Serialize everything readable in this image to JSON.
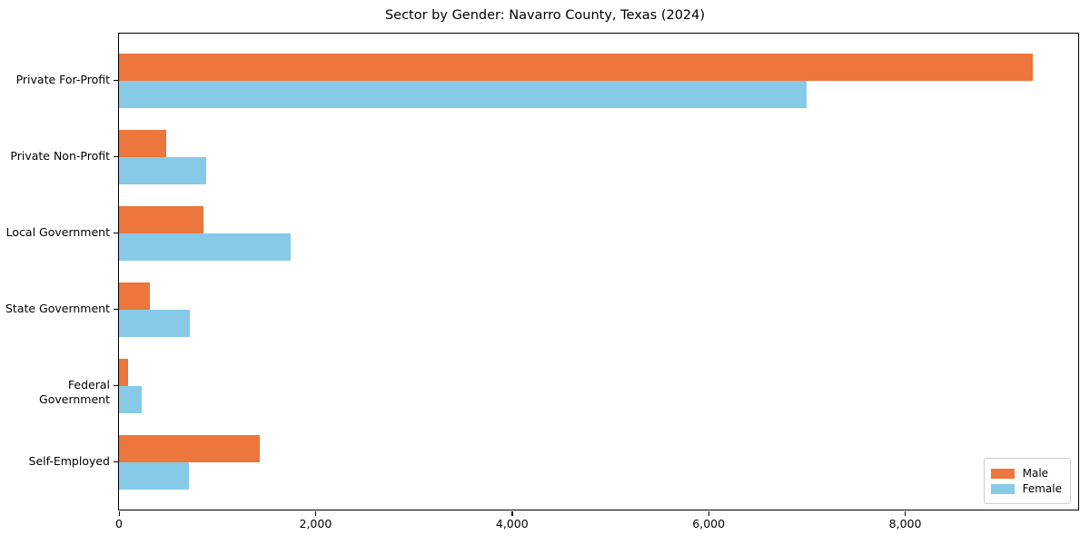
{
  "title": "Sector by Gender: Navarro County, Texas (2024)",
  "legend": {
    "position": "lower right",
    "items": [
      {
        "label": "Male",
        "color": "#ec763c"
      },
      {
        "label": "Female",
        "color": "#87cae8"
      }
    ]
  },
  "chart_data": {
    "type": "bar",
    "orientation": "horizontal",
    "title": "Sector by Gender: Navarro County, Texas (2024)",
    "xlabel": "",
    "ylabel": "",
    "grid": false,
    "legend_position": "lower right",
    "categories": [
      "Private For-Profit",
      "Private Non-Profit",
      "Local Government",
      "State Government",
      "Federal Government",
      "Self-Employed"
    ],
    "series": [
      {
        "name": "Male",
        "color": "#ec763c",
        "values": [
          9300,
          480,
          860,
          310,
          95,
          1430
        ]
      },
      {
        "name": "Female",
        "color": "#87cae8",
        "values": [
          7000,
          890,
          1750,
          720,
          230,
          710
        ]
      }
    ],
    "xlim": [
      0,
      9760
    ],
    "x_ticks": [
      {
        "value": 0,
        "label": "0"
      },
      {
        "value": 2000,
        "label": "2,000"
      },
      {
        "value": 4000,
        "label": "4,000"
      },
      {
        "value": 6000,
        "label": "6,000"
      },
      {
        "value": 8000,
        "label": "8,000"
      }
    ]
  }
}
